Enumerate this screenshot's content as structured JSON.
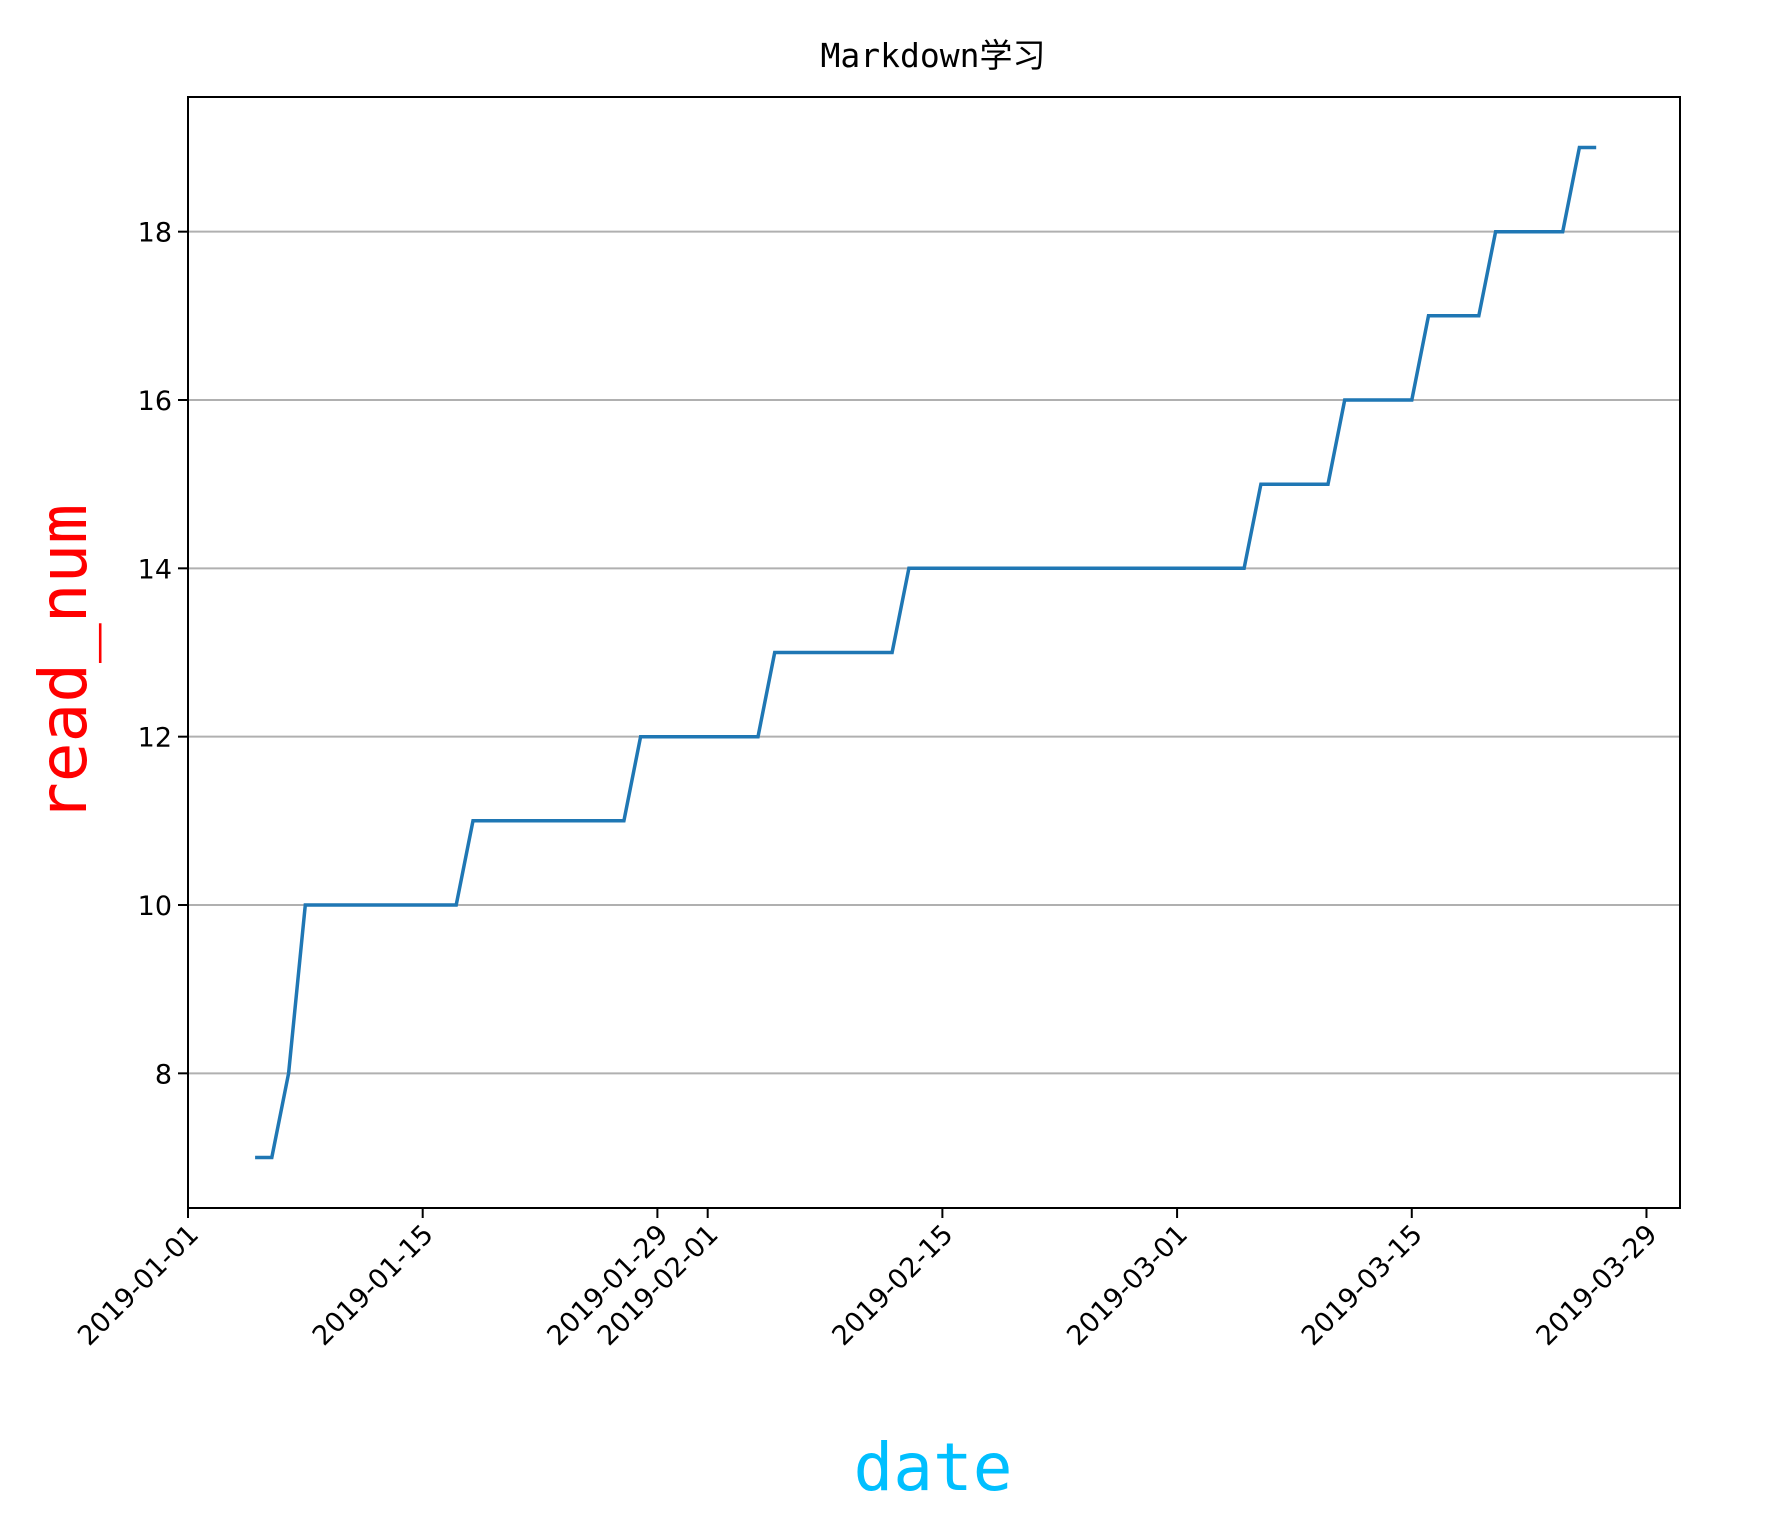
{
  "chart_data": {
    "type": "line",
    "title": "Markdown学习",
    "xlabel": "date",
    "ylabel": "read_num",
    "xlabel_color": "#00bfff",
    "ylabel_color": "#ff0000",
    "series_color": "#1f77b4",
    "grid": "horizontal",
    "x_range": [
      "2019-01-01",
      "2019-03-31"
    ],
    "ylim": [
      6.4,
      19.6
    ],
    "x_ticks": [
      "2019-01-01",
      "2019-01-15",
      "2019-01-29",
      "2019-02-01",
      "2019-02-15",
      "2019-03-01",
      "2019-03-15",
      "2019-03-29"
    ],
    "y_ticks": [
      8,
      10,
      12,
      14,
      16,
      18
    ],
    "series": [
      {
        "points": [
          [
            "2019-01-05",
            7
          ],
          [
            "2019-01-06",
            7
          ],
          [
            "2019-01-07",
            8
          ],
          [
            "2019-01-08",
            10
          ],
          [
            "2019-01-17",
            10
          ],
          [
            "2019-01-18",
            11
          ],
          [
            "2019-01-27",
            11
          ],
          [
            "2019-01-28",
            12
          ],
          [
            "2019-02-04",
            12
          ],
          [
            "2019-02-05",
            13
          ],
          [
            "2019-02-12",
            13
          ],
          [
            "2019-02-13",
            14
          ],
          [
            "2019-03-05",
            14
          ],
          [
            "2019-03-06",
            15
          ],
          [
            "2019-03-10",
            15
          ],
          [
            "2019-03-11",
            16
          ],
          [
            "2019-03-15",
            16
          ],
          [
            "2019-03-16",
            17
          ],
          [
            "2019-03-19",
            17
          ],
          [
            "2019-03-20",
            18
          ],
          [
            "2019-03-24",
            18
          ],
          [
            "2019-03-25",
            19
          ],
          [
            "2019-03-26",
            19
          ]
        ]
      }
    ]
  }
}
